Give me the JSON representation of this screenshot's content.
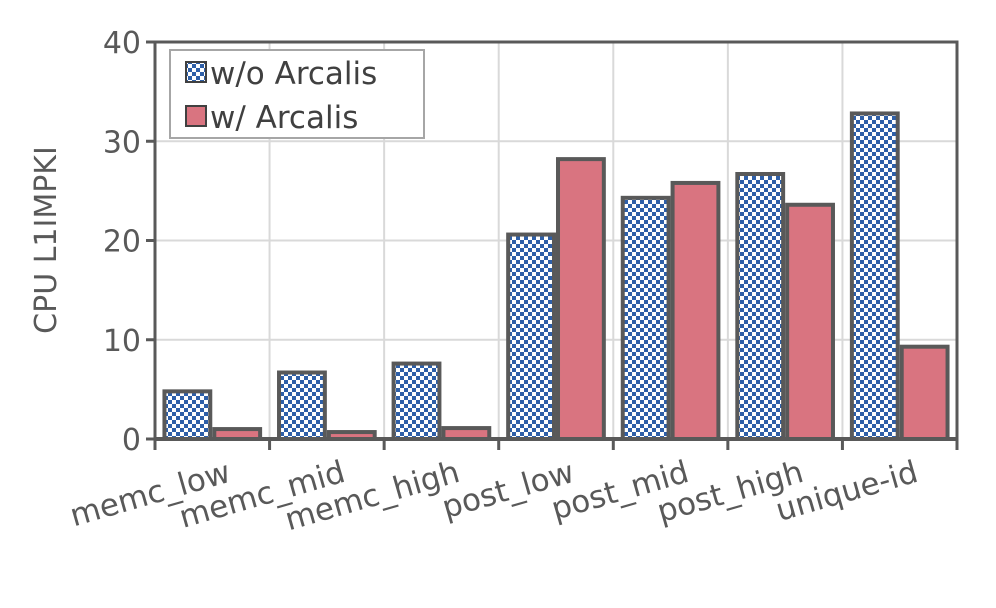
{
  "chart_data": {
    "type": "bar",
    "title": "",
    "xlabel": "",
    "ylabel": "CPU L1IMPKI",
    "ylim": [
      0,
      40
    ],
    "yticks": [
      0,
      10,
      20,
      30,
      40
    ],
    "grid": true,
    "legend_position": "top-left",
    "categories": [
      "memc_low",
      "memc_mid",
      "memc_high",
      "post_low",
      "post_mid",
      "post_high",
      "unique-id"
    ],
    "series": [
      {
        "name": "w/o Arcalis",
        "pattern": "checkered",
        "color": "#2e5fa8",
        "values": [
          4.8,
          6.7,
          7.6,
          20.6,
          24.3,
          26.7,
          32.8
        ]
      },
      {
        "name": "w/ Arcalis",
        "pattern": "solid",
        "color": "#d97480",
        "values": [
          1.0,
          0.7,
          1.1,
          28.2,
          25.8,
          23.6,
          9.3
        ]
      }
    ]
  }
}
